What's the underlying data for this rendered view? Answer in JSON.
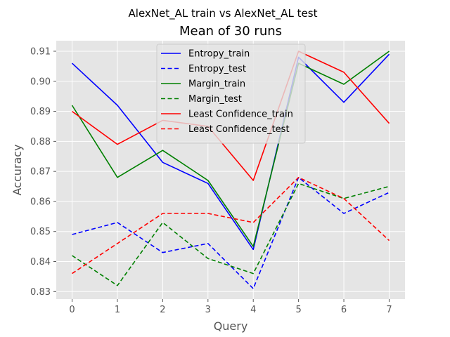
{
  "chart_data": {
    "type": "line",
    "suptitle": "AlexNet_AL train vs AlexNet_AL test",
    "title": "Mean of 30 runs",
    "xlabel": "Query",
    "ylabel": "Accuracy",
    "x": [
      0,
      1,
      2,
      3,
      4,
      5,
      6,
      7
    ],
    "xlim": [
      -0.35,
      7.35
    ],
    "ylim": [
      0.8275,
      0.9135
    ],
    "yticks": [
      0.83,
      0.84,
      0.85,
      0.86,
      0.87,
      0.88,
      0.89,
      0.9,
      0.91
    ],
    "ytick_labels": [
      "0.83",
      "0.84",
      "0.85",
      "0.86",
      "0.87",
      "0.88",
      "0.89",
      "0.90",
      "0.91"
    ],
    "xticks": [
      0,
      1,
      2,
      3,
      4,
      5,
      6,
      7
    ],
    "xtick_labels": [
      "0",
      "1",
      "2",
      "3",
      "4",
      "5",
      "6",
      "7"
    ],
    "grid": true,
    "legend_position": "upper-center",
    "background": "#e5e5e5",
    "series": [
      {
        "name": "Entropy_train",
        "color": "#0000ff",
        "style": "solid",
        "values": [
          0.906,
          0.892,
          0.873,
          0.866,
          0.844,
          0.908,
          0.893,
          0.909
        ]
      },
      {
        "name": "Entropy_test",
        "color": "#0000ff",
        "style": "dashed",
        "values": [
          0.849,
          0.853,
          0.843,
          0.846,
          0.831,
          0.868,
          0.856,
          0.863
        ]
      },
      {
        "name": "Margin_train",
        "color": "#008000",
        "style": "solid",
        "values": [
          0.892,
          0.868,
          0.877,
          0.867,
          0.845,
          0.906,
          0.899,
          0.91
        ]
      },
      {
        "name": "Margin_test",
        "color": "#008000",
        "style": "dashed",
        "values": [
          0.842,
          0.832,
          0.853,
          0.841,
          0.836,
          0.866,
          0.861,
          0.865
        ]
      },
      {
        "name": "Least Confidence_train",
        "color": "#ff0000",
        "style": "solid",
        "values": [
          0.89,
          0.879,
          0.887,
          0.885,
          0.867,
          0.91,
          0.903,
          0.886
        ]
      },
      {
        "name": "Least Confidence_test",
        "color": "#ff0000",
        "style": "dashed",
        "values": [
          0.836,
          0.846,
          0.856,
          0.856,
          0.853,
          0.868,
          0.861,
          0.847
        ]
      }
    ]
  }
}
